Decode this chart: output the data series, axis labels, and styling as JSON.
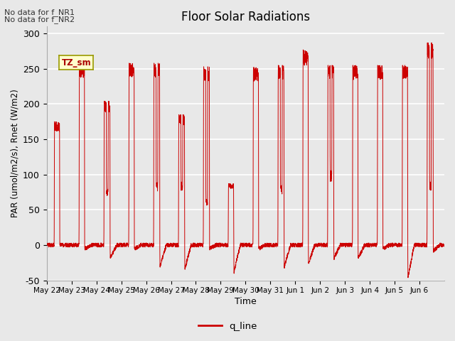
{
  "title": "Floor Solar Radiations",
  "xlabel": "Time",
  "ylabel": "PAR (umol/m2/s), Rnet (W/m2)",
  "ylim": [
    -50,
    310
  ],
  "yticks": [
    -50,
    0,
    50,
    100,
    150,
    200,
    250,
    300
  ],
  "annotations": [
    "No data for f_NR1",
    "No data for f_NR2"
  ],
  "legend_label": "q_line",
  "legend_color": "#cc0000",
  "line_color": "#cc0000",
  "bg_color": "#e8e8e8",
  "plot_bg": "#e8e8e8",
  "tag_label": "TZ_sm",
  "tag_bg": "#ffffcc",
  "tag_border": "#999900",
  "x_tick_labels": [
    "May 22",
    "May 23",
    "May 24",
    "May 25",
    "May 26",
    "May 27",
    "May 28",
    "May 29",
    "May 30",
    "May 31",
    "Jun 1",
    "Jun 2",
    "Jun 3",
    "Jun 4",
    "Jun 5",
    "Jun 6"
  ],
  "num_days": 16,
  "day_peaks": [
    175,
    258,
    204,
    258,
    258,
    185,
    253,
    87,
    252,
    255,
    277,
    255,
    255,
    255,
    255,
    287
  ],
  "day_valleys": [
    0,
    -5,
    -18,
    -5,
    -30,
    -33,
    -5,
    -38,
    -5,
    -30,
    -25,
    -18,
    -18,
    -5,
    -45,
    -8
  ],
  "day_mid_peaks": [
    0,
    0,
    80,
    0,
    90,
    90,
    65,
    0,
    0,
    85,
    0,
    106,
    0,
    0,
    0,
    90
  ]
}
